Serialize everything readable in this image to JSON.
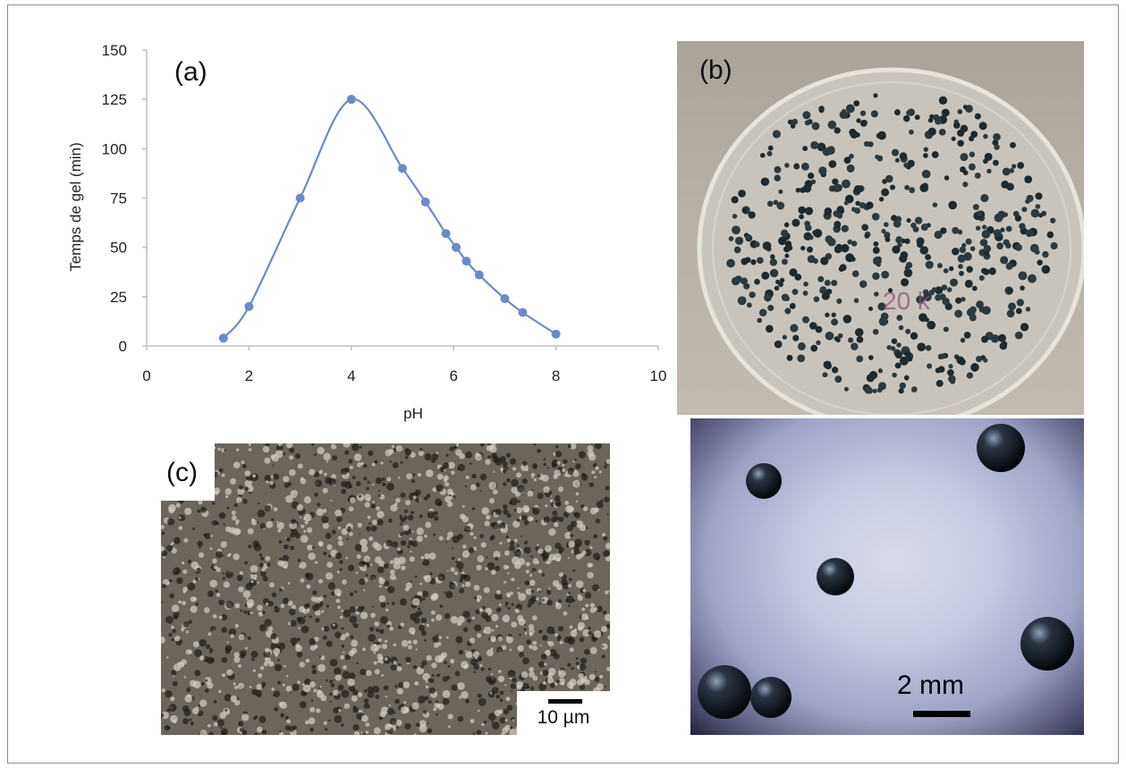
{
  "chart_data": {
    "type": "line",
    "title": "",
    "xlabel": "pH",
    "ylabel": "Temps de gel (min)",
    "xlim": [
      0,
      10
    ],
    "ylim": [
      0,
      150
    ],
    "xticks": [
      "0",
      "2",
      "4",
      "6",
      "8",
      "10"
    ],
    "yticks": [
      "0",
      "25",
      "50",
      "75",
      "100",
      "125",
      "150"
    ],
    "grid": false,
    "legend": "none",
    "series": [
      {
        "color": "#6a8bc8",
        "x": [
          1.5,
          2,
          3,
          4,
          5,
          5.45,
          5.85,
          6.05,
          6.25,
          6.5,
          7,
          7.35,
          8
        ],
        "y": [
          4,
          20,
          75,
          125,
          90,
          73,
          57,
          50,
          43,
          36,
          24,
          17,
          6
        ]
      }
    ]
  },
  "panels": {
    "a_label": "(a)",
    "b_label": "(b)",
    "c_label": "(c)"
  },
  "scalebars": {
    "c_text": "10 µm",
    "b_text": "2 mm"
  },
  "colors": {
    "series": "#6a8bc8",
    "axis": "#bfbfbf",
    "text": "#222222"
  }
}
